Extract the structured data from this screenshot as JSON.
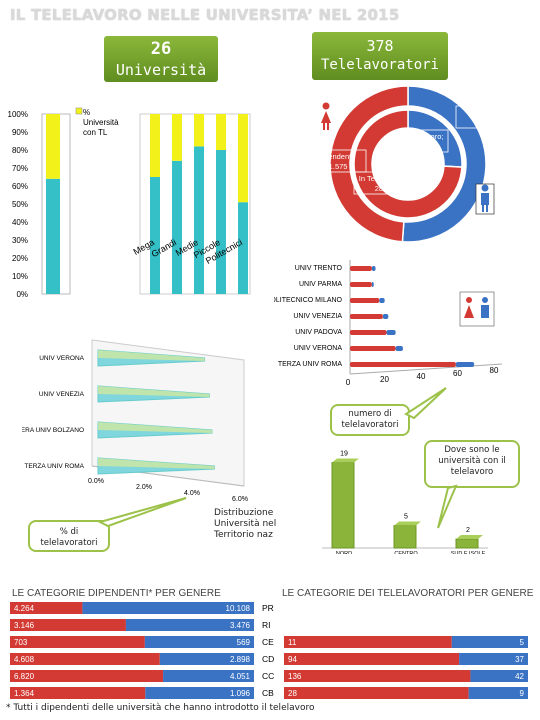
{
  "title": "IL TELELAVORO NELLE UNIVERSITA’ NEL 2015",
  "box_universita": {
    "number": "26",
    "label": "Università"
  },
  "box_telelavoratori": {
    "number": "378",
    "label": "Telelavoratori"
  },
  "icons": {
    "female": "female-person-icon",
    "male": "male-person-icon"
  },
  "colors": {
    "red": "#d23a33",
    "blue": "#3a72c4",
    "teal": "#35c0c7",
    "yellow": "#f2f21a",
    "green": "#8ab43a"
  },
  "callouts": {
    "numero": "numero di telelavoratori",
    "dove": "Dove sono le università con il telelavoro",
    "percent": "% di telelavoratori",
    "distribuzione": "Distribuzione Università nel Territorio naz"
  },
  "footnote": "* Tutti i dipendenti delle università che hanno introdotto il telelavoro",
  "chart_data": [
    {
      "id": "stacked-percent",
      "type": "bar",
      "stacked": true,
      "categories": [
        "Mega",
        "Grandi",
        "Medie",
        "Piccole",
        "Politecnici"
      ],
      "series": [
        {
          "name": "% Università con TL",
          "color": "#35c0c7",
          "values": [
            65,
            74,
            82,
            80,
            51
          ]
        },
        {
          "name": "",
          "color": "#f2f21a",
          "values": [
            35,
            26,
            18,
            20,
            49
          ]
        }
      ],
      "ylim": [
        0,
        100
      ],
      "yticks": [
        "0%",
        "10%",
        "20%",
        "30%",
        "40%",
        "50%",
        "60%",
        "70%",
        "80%",
        "90%",
        "100%"
      ],
      "total_bar": {
        "teal": 64,
        "yellow": 36
      },
      "legend_label": "% Università con TL"
    },
    {
      "id": "donut",
      "type": "pie",
      "outer": [
        {
          "label": "Dipendenti; 22.581",
          "value": 22581,
          "color": "#3a72c4"
        },
        {
          "label": "Dipendenti; 21.575",
          "value": 21575,
          "color": "#d23a33"
        }
      ],
      "inner": [
        {
          "label": "In telelavoro; 98",
          "value": 98,
          "color": "#3a72c4"
        },
        {
          "label": "In Telelavoro; 280",
          "value": 280,
          "color": "#d23a33"
        }
      ]
    },
    {
      "id": "univ-bars",
      "type": "bar",
      "orientation": "horizontal",
      "categories": [
        "UNIV TRENTO",
        "UNIV PARMA",
        "POLITECNICO MILANO",
        "UNIV VENEZIA",
        "UNIV PADOVA",
        "UNIV VERONA",
        "TERZA UNIV ROMA"
      ],
      "series": [
        {
          "name": "",
          "color": "#d23a33",
          "values": [
            12,
            12,
            16,
            18,
            20,
            25,
            58
          ]
        },
        {
          "name": "",
          "color": "#3a72c4",
          "values": [
            2,
            1,
            3,
            3,
            5,
            4,
            10
          ]
        }
      ],
      "xlim": [
        0,
        80
      ],
      "xticks": [
        0,
        20,
        40,
        60,
        80
      ]
    },
    {
      "id": "percent-3d",
      "type": "bar",
      "orientation": "horizontal",
      "categories": [
        "UNIV VERONA",
        "UNIV VENEZIA",
        "LIBERA UNIV BOLZANO",
        "TERZA UNIV ROMA"
      ],
      "values": [
        4.4,
        4.6,
        4.7,
        4.8
      ],
      "xticks": [
        "0.0%",
        "2.0%",
        "4.0%",
        "6.0%"
      ],
      "xlim": [
        0,
        6
      ]
    },
    {
      "id": "distribuzione",
      "type": "bar",
      "categories": [
        "NORD",
        "CENTRO",
        "SUD E ISOLE"
      ],
      "values": [
        19,
        5,
        2
      ],
      "data_labels": [
        "19",
        "5",
        "2"
      ],
      "ylim": [
        0,
        20
      ]
    },
    {
      "id": "categorie-dipendenti",
      "type": "bar",
      "orientation": "horizontal",
      "stacked": true,
      "title": "LE CATEGORIE DIPENDENTI* PER GENERE",
      "categories": [
        "PR",
        "RI",
        "CE",
        "CD",
        "CC",
        "CB"
      ],
      "series": [
        {
          "name": "",
          "color": "#d23a33",
          "values": [
            4264,
            3146,
            703,
            4608,
            6820,
            1364
          ],
          "labels": [
            "4.264",
            "3.146",
            "703",
            "4.608",
            "6.820",
            "1.364"
          ]
        },
        {
          "name": "",
          "color": "#3a72c4",
          "values": [
            10108,
            3476,
            569,
            2898,
            4051,
            1096
          ],
          "labels": [
            "10.108",
            "3.476",
            "569",
            "2.898",
            "4.051",
            "1.096"
          ]
        }
      ]
    },
    {
      "id": "categorie-telelavoratori",
      "type": "bar",
      "orientation": "horizontal",
      "stacked": true,
      "title": "LE CATEGORIE DEI TELELAVORATORI PER GENERE",
      "categories": [
        "CE",
        "CD",
        "CC",
        "CB"
      ],
      "series": [
        {
          "name": "",
          "color": "#d23a33",
          "values": [
            11,
            94,
            136,
            28
          ],
          "labels": [
            "11",
            "94",
            "136",
            "28"
          ]
        },
        {
          "name": "",
          "color": "#3a72c4",
          "values": [
            5,
            37,
            42,
            9
          ],
          "labels": [
            "5",
            "37",
            "42",
            "9"
          ]
        }
      ]
    }
  ]
}
